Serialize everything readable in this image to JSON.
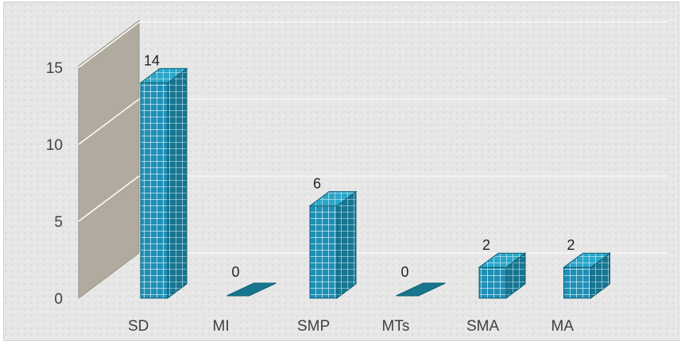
{
  "chart_data": {
    "type": "bar",
    "style": "3d-column",
    "categories": [
      "SD",
      "MI",
      "SMP",
      "MTs",
      "SMA",
      "MA"
    ],
    "values": [
      14,
      0,
      6,
      0,
      2,
      2
    ],
    "ylim": [
      0,
      15
    ],
    "yticks": [
      0,
      5,
      10,
      15
    ],
    "title": "",
    "xlabel": "",
    "ylabel": "",
    "grid": true,
    "legend": "none",
    "data_labels": true
  },
  "colors": {
    "bar_front": "#1f8fb5",
    "bar_side": "#17758f",
    "bar_top": "#2aa6c9",
    "bar_pattern": "#e9fbff",
    "wall": "#b1aa9f",
    "gridline": "#ffffff",
    "background": "#e7e7e7"
  }
}
